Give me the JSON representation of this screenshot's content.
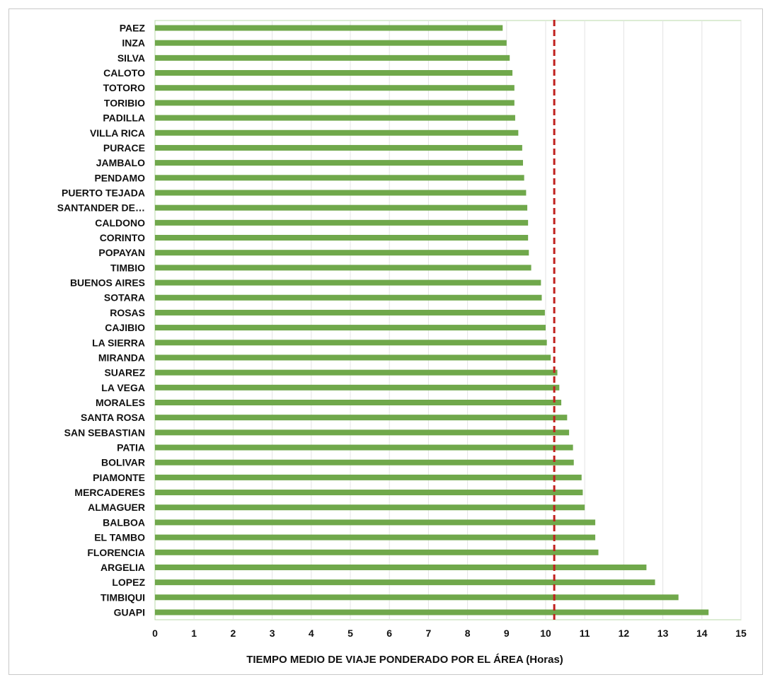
{
  "chart_data": {
    "type": "bar",
    "orientation": "horizontal",
    "categories": [
      "PAEZ",
      "INZA",
      "SILVA",
      "CALOTO",
      "TOTORO",
      "TORIBIO",
      "PADILLA",
      "VILLA RICA",
      "PURACE",
      "JAMBALO",
      "PENDAMO",
      "PUERTO TEJADA",
      "SANTANDER DE…",
      "CALDONO",
      "CORINTO",
      "POPAYAN",
      "TIMBIO",
      "BUENOS AIRES",
      "SOTARA",
      "ROSAS",
      "CAJIBIO",
      "LA SIERRA",
      "MIRANDA",
      "SUAREZ",
      "LA VEGA",
      "MORALES",
      "SANTA ROSA",
      "SAN SEBASTIAN",
      "PATIA",
      "BOLIVAR",
      "PIAMONTE",
      "MERCADERES",
      "ALMAGUER",
      "BALBOA",
      "EL TAMBO",
      "FLORENCIA",
      "ARGELIA",
      "LOPEZ",
      "TIMBIQUI",
      "GUAPI"
    ],
    "values": [
      8.9,
      9.0,
      9.08,
      9.15,
      9.2,
      9.2,
      9.22,
      9.3,
      9.4,
      9.42,
      9.45,
      9.5,
      9.53,
      9.55,
      9.55,
      9.57,
      9.63,
      9.88,
      9.9,
      9.98,
      10.0,
      10.03,
      10.13,
      10.3,
      10.35,
      10.4,
      10.55,
      10.6,
      10.7,
      10.72,
      10.92,
      10.95,
      11.0,
      11.27,
      11.27,
      11.35,
      12.58,
      12.8,
      13.4,
      14.17
    ],
    "reference_line": {
      "value": 10.22,
      "style": "dashed",
      "color": "#c0201e"
    },
    "xlim": [
      0,
      15
    ],
    "xticks": [
      "0",
      "1",
      "2",
      "3",
      "4",
      "5",
      "6",
      "7",
      "8",
      "9",
      "10",
      "11",
      "12",
      "13",
      "14",
      "15"
    ],
    "xlabel": "TIEMPO MEDIO DE VIAJE  PONDERADO  POR  EL ÁREA (Horas)",
    "ylabel": "",
    "title": "",
    "grid": "vertical",
    "colors": {
      "bar": "#70a84b",
      "grid": "#e3e3e3",
      "plot_border": "#b9d8a8"
    }
  }
}
